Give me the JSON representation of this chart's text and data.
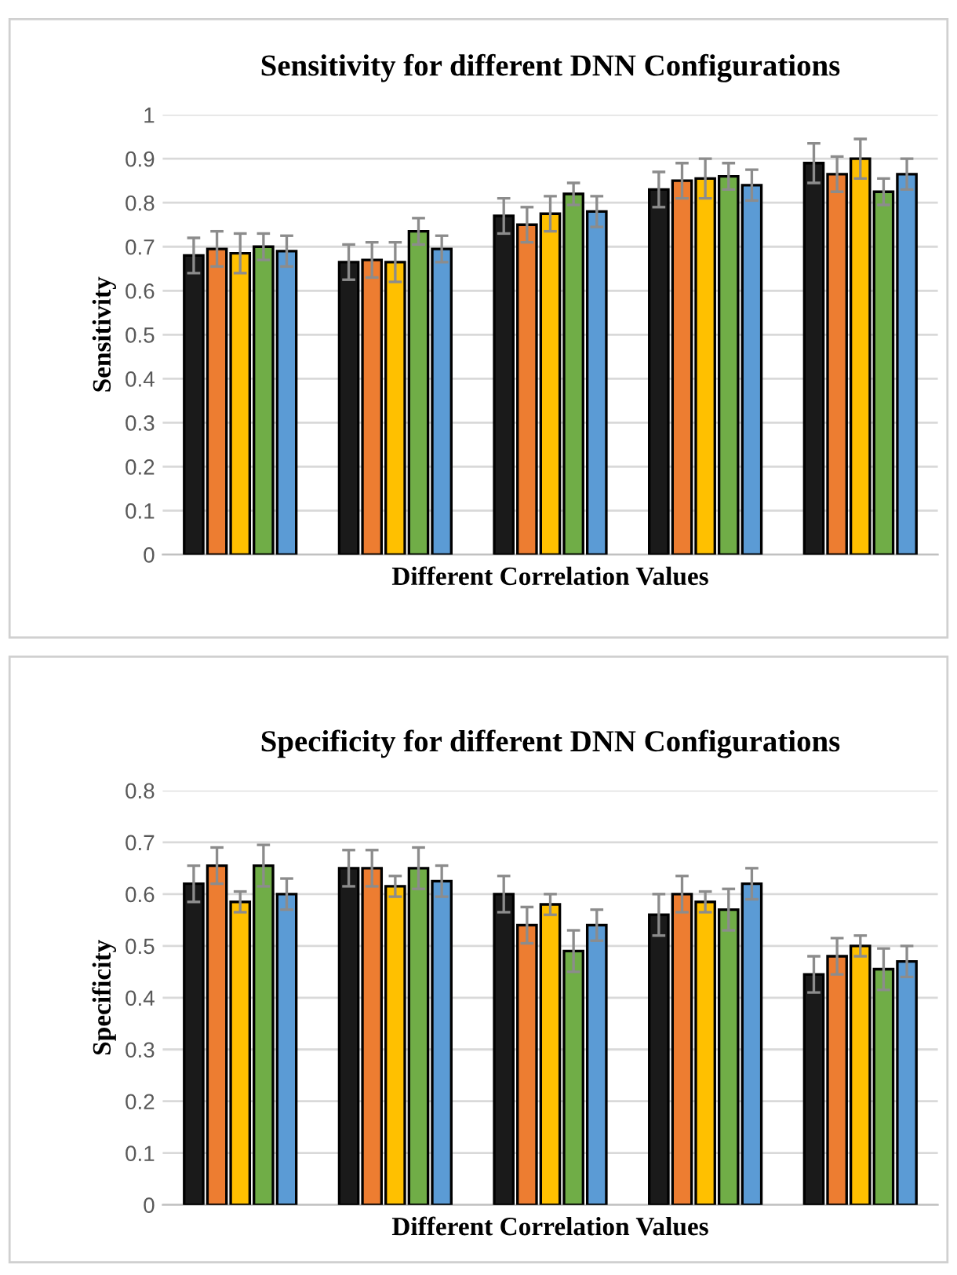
{
  "chart_data": [
    {
      "type": "bar",
      "title": "Sensitivity for different DNN Configurations",
      "xlabel": "Different Correlation Values",
      "ylabel": "Sensitivity",
      "categories": [
        null,
        null,
        null,
        null,
        null
      ],
      "series": [
        {
          "color": "#1a1a1a",
          "values": [
            0.68,
            0.665,
            0.77,
            0.83,
            0.89
          ],
          "errors": [
            0.04,
            0.04,
            0.04,
            0.04,
            0.045
          ]
        },
        {
          "color": "#ed7d31",
          "values": [
            0.695,
            0.67,
            0.75,
            0.85,
            0.865
          ],
          "errors": [
            0.04,
            0.04,
            0.04,
            0.04,
            0.04
          ]
        },
        {
          "color": "#ffc000",
          "values": [
            0.685,
            0.665,
            0.775,
            0.855,
            0.9
          ],
          "errors": [
            0.045,
            0.045,
            0.04,
            0.045,
            0.045
          ]
        },
        {
          "color": "#70ad47",
          "values": [
            0.7,
            0.735,
            0.82,
            0.86,
            0.825
          ],
          "errors": [
            0.03,
            0.03,
            0.025,
            0.03,
            0.03
          ]
        },
        {
          "color": "#5b9bd5",
          "values": [
            0.69,
            0.695,
            0.78,
            0.84,
            0.865
          ],
          "errors": [
            0.035,
            0.03,
            0.035,
            0.035,
            0.035
          ]
        }
      ],
      "ylim": [
        0,
        1
      ],
      "yticks": [
        0,
        0.1,
        0.2,
        0.3,
        0.4,
        0.5,
        0.6,
        0.7,
        0.8,
        0.9,
        1
      ],
      "grid": "y"
    },
    {
      "type": "bar",
      "title": "Specificity for different DNN Configurations",
      "xlabel": "Different Correlation Values",
      "ylabel": "Specificity",
      "categories": [
        null,
        null,
        null,
        null,
        null
      ],
      "series": [
        {
          "color": "#1a1a1a",
          "values": [
            0.62,
            0.65,
            0.6,
            0.56,
            0.445
          ],
          "errors": [
            0.035,
            0.035,
            0.035,
            0.04,
            0.035
          ]
        },
        {
          "color": "#ed7d31",
          "values": [
            0.655,
            0.65,
            0.54,
            0.6,
            0.48
          ],
          "errors": [
            0.035,
            0.035,
            0.035,
            0.035,
            0.035
          ]
        },
        {
          "color": "#ffc000",
          "values": [
            0.585,
            0.615,
            0.58,
            0.585,
            0.5
          ],
          "errors": [
            0.02,
            0.02,
            0.02,
            0.02,
            0.02
          ]
        },
        {
          "color": "#70ad47",
          "values": [
            0.655,
            0.65,
            0.49,
            0.57,
            0.455
          ],
          "errors": [
            0.04,
            0.04,
            0.04,
            0.04,
            0.04
          ]
        },
        {
          "color": "#5b9bd5",
          "values": [
            0.6,
            0.625,
            0.54,
            0.62,
            0.47
          ],
          "errors": [
            0.03,
            0.03,
            0.03,
            0.03,
            0.03
          ]
        }
      ],
      "ylim": [
        0,
        0.8
      ],
      "yticks": [
        0,
        0.1,
        0.2,
        0.3,
        0.4,
        0.5,
        0.6,
        0.7,
        0.8
      ],
      "grid": "y"
    }
  ]
}
